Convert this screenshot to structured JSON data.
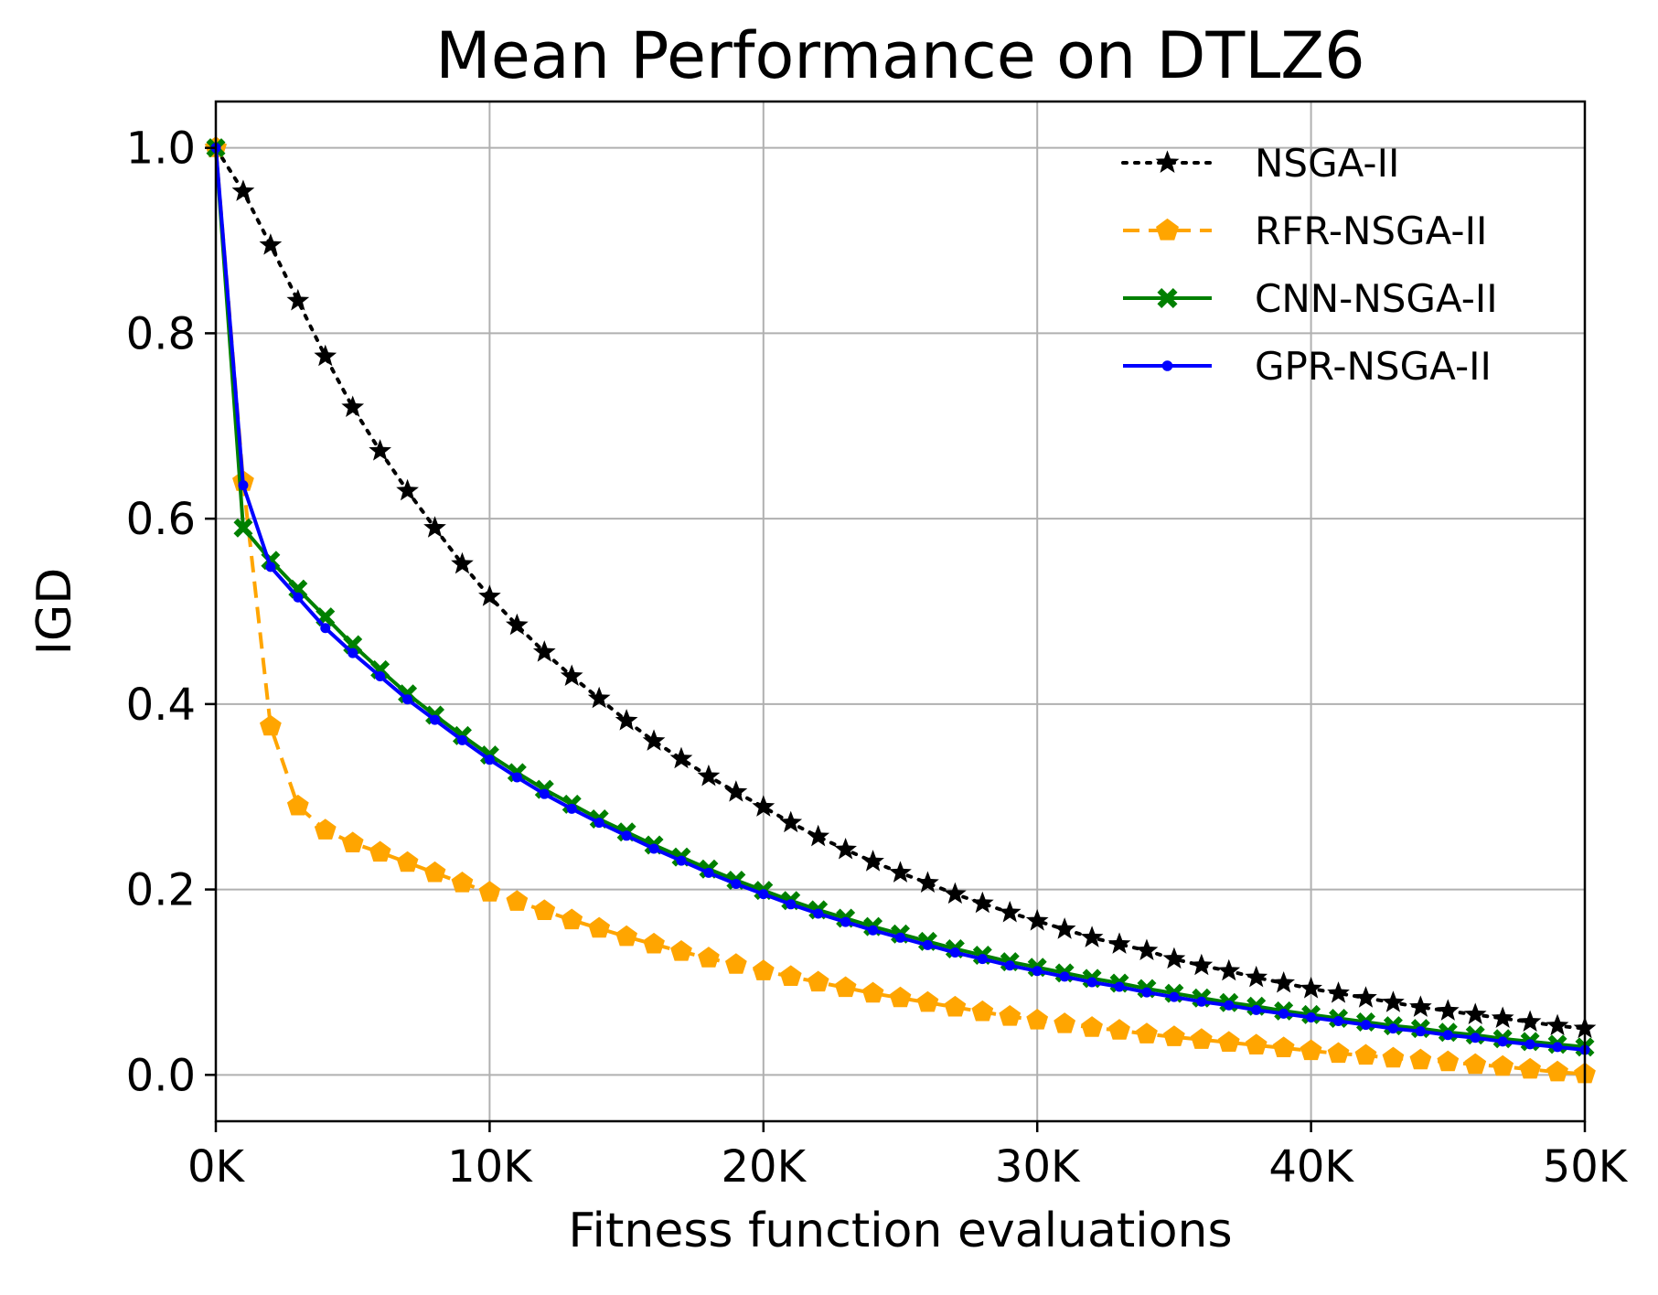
{
  "chart_data": {
    "type": "line",
    "title": "Mean Performance on DTLZ6",
    "xlabel": "Fitness function evaluations",
    "ylabel": "IGD",
    "xlim": [
      0,
      50000
    ],
    "ylim": [
      -0.05,
      1.05
    ],
    "grid": true,
    "legend_position": "top-right",
    "x_ticks": [
      0,
      10000,
      20000,
      30000,
      40000,
      50000
    ],
    "x_tick_labels": [
      "0K",
      "10K",
      "20K",
      "30K",
      "40K",
      "50K"
    ],
    "y_ticks": [
      0.0,
      0.2,
      0.4,
      0.6,
      0.8,
      1.0
    ],
    "y_tick_labels": [
      "0.0",
      "0.2",
      "0.4",
      "0.6",
      "0.8",
      "1.0"
    ],
    "x": [
      0,
      1000,
      2000,
      3000,
      4000,
      5000,
      6000,
      7000,
      8000,
      9000,
      10000,
      11000,
      12000,
      13000,
      14000,
      15000,
      16000,
      17000,
      18000,
      19000,
      20000,
      21000,
      22000,
      23000,
      24000,
      25000,
      26000,
      27000,
      28000,
      29000,
      30000,
      31000,
      32000,
      33000,
      34000,
      35000,
      36000,
      37000,
      38000,
      39000,
      40000,
      41000,
      42000,
      43000,
      44000,
      45000,
      46000,
      47000,
      48000,
      49000,
      50000
    ],
    "series": [
      {
        "name": "NSGA-II",
        "color": "#000000",
        "line_style": "dotted",
        "marker": "star",
        "values": [
          1.0,
          0.953,
          0.895,
          0.835,
          0.775,
          0.72,
          0.673,
          0.63,
          0.59,
          0.551,
          0.516,
          0.485,
          0.456,
          0.43,
          0.406,
          0.382,
          0.36,
          0.341,
          0.322,
          0.305,
          0.289,
          0.272,
          0.257,
          0.243,
          0.23,
          0.218,
          0.207,
          0.195,
          0.185,
          0.175,
          0.166,
          0.157,
          0.148,
          0.141,
          0.134,
          0.125,
          0.118,
          0.112,
          0.105,
          0.099,
          0.093,
          0.088,
          0.083,
          0.078,
          0.073,
          0.069,
          0.065,
          0.061,
          0.057,
          0.053,
          0.05
        ]
      },
      {
        "name": "RFR-NSGA-II",
        "color": "#ffa500",
        "line_style": "dashed",
        "marker": "pentagon",
        "values": [
          1.0,
          0.64,
          0.376,
          0.29,
          0.264,
          0.25,
          0.24,
          0.229,
          0.218,
          0.207,
          0.197,
          0.187,
          0.177,
          0.167,
          0.158,
          0.149,
          0.141,
          0.133,
          0.126,
          0.119,
          0.112,
          0.106,
          0.1,
          0.094,
          0.088,
          0.083,
          0.078,
          0.073,
          0.068,
          0.063,
          0.059,
          0.055,
          0.051,
          0.048,
          0.044,
          0.041,
          0.038,
          0.035,
          0.032,
          0.029,
          0.026,
          0.023,
          0.021,
          0.018,
          0.016,
          0.014,
          0.011,
          0.009,
          0.006,
          0.003,
          0.001
        ]
      },
      {
        "name": "CNN-NSGA-II",
        "color": "#008000",
        "line_style": "solid",
        "marker": "x-filled",
        "values": [
          1.0,
          0.59,
          0.555,
          0.524,
          0.494,
          0.464,
          0.437,
          0.411,
          0.388,
          0.366,
          0.345,
          0.326,
          0.308,
          0.292,
          0.276,
          0.262,
          0.248,
          0.235,
          0.222,
          0.21,
          0.199,
          0.188,
          0.178,
          0.169,
          0.16,
          0.152,
          0.144,
          0.136,
          0.129,
          0.122,
          0.116,
          0.11,
          0.104,
          0.099,
          0.093,
          0.088,
          0.083,
          0.078,
          0.074,
          0.069,
          0.065,
          0.061,
          0.057,
          0.053,
          0.05,
          0.046,
          0.043,
          0.039,
          0.036,
          0.033,
          0.03
        ]
      },
      {
        "name": "GPR-NSGA-II",
        "color": "#0000ff",
        "line_style": "solid",
        "marker": "dot",
        "values": [
          1.0,
          0.636,
          0.548,
          0.515,
          0.482,
          0.455,
          0.43,
          0.405,
          0.383,
          0.361,
          0.34,
          0.321,
          0.303,
          0.287,
          0.272,
          0.258,
          0.244,
          0.231,
          0.218,
          0.206,
          0.195,
          0.184,
          0.174,
          0.165,
          0.156,
          0.148,
          0.14,
          0.132,
          0.125,
          0.118,
          0.112,
          0.106,
          0.1,
          0.095,
          0.089,
          0.084,
          0.079,
          0.075,
          0.07,
          0.066,
          0.062,
          0.058,
          0.054,
          0.05,
          0.047,
          0.043,
          0.04,
          0.036,
          0.033,
          0.03,
          0.027
        ]
      }
    ]
  }
}
